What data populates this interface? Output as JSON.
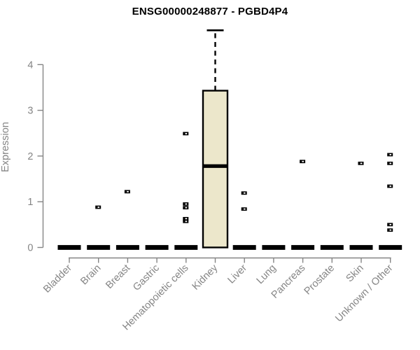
{
  "title": "ENSG00000248877 - PGBD4P4",
  "colors": {
    "background": "#ffffff",
    "axis": "#858585",
    "tick_label": "#858585",
    "box_fill": "#ECE7CB",
    "box_border": "#000000",
    "median": "#000000",
    "outlier": "#000000",
    "title_color": "#000000"
  },
  "chart_data": {
    "type": "boxplot",
    "title": "ENSG00000248877 - PGBD4P4",
    "xlabel": "",
    "ylabel": "Expression",
    "ylim": [
      0,
      4.8
    ],
    "yticks": [
      0,
      1,
      2,
      3,
      4
    ],
    "grid": false,
    "legend": false,
    "categories": [
      "Bladder",
      "Brain",
      "Breast",
      "Gastric",
      "Hematopoietic cells",
      "Kidney",
      "Liver",
      "Lung",
      "Pancreas",
      "Prostate",
      "Skin",
      "Unknown / Other"
    ],
    "series": [
      {
        "category": "Bladder",
        "q1": 0,
        "median": 0,
        "q3": 0,
        "whisker_low": 0,
        "whisker_high": 0,
        "outliers": []
      },
      {
        "category": "Brain",
        "q1": 0,
        "median": 0,
        "q3": 0,
        "whisker_low": 0,
        "whisker_high": 0,
        "outliers": [
          0.88
        ]
      },
      {
        "category": "Breast",
        "q1": 0,
        "median": 0,
        "q3": 0,
        "whisker_low": 0,
        "whisker_high": 0,
        "outliers": [
          1.22
        ]
      },
      {
        "category": "Gastric",
        "q1": 0,
        "median": 0,
        "q3": 0,
        "whisker_low": 0,
        "whisker_high": 0,
        "outliers": []
      },
      {
        "category": "Hematopoietic cells",
        "q1": 0,
        "median": 0,
        "q3": 0,
        "whisker_low": 0,
        "whisker_high": 0,
        "outliers": [
          2.49,
          0.95,
          0.87,
          0.63,
          0.57
        ]
      },
      {
        "category": "Kidney",
        "q1": 0,
        "median": 1.78,
        "q3": 3.43,
        "whisker_low": 0,
        "whisker_high": 4.75,
        "outliers": []
      },
      {
        "category": "Liver",
        "q1": 0,
        "median": 0,
        "q3": 0,
        "whisker_low": 0,
        "whisker_high": 0,
        "outliers": [
          1.19,
          0.84
        ]
      },
      {
        "category": "Lung",
        "q1": 0,
        "median": 0,
        "q3": 0,
        "whisker_low": 0,
        "whisker_high": 0,
        "outliers": []
      },
      {
        "category": "Pancreas",
        "q1": 0,
        "median": 0,
        "q3": 0,
        "whisker_low": 0,
        "whisker_high": 0,
        "outliers": [
          1.88
        ]
      },
      {
        "category": "Prostate",
        "q1": 0,
        "median": 0,
        "q3": 0,
        "whisker_low": 0,
        "whisker_high": 0,
        "outliers": []
      },
      {
        "category": "Skin",
        "q1": 0,
        "median": 0,
        "q3": 0,
        "whisker_low": 0,
        "whisker_high": 0,
        "outliers": [
          1.84
        ]
      },
      {
        "category": "Unknown / Other",
        "q1": 0,
        "median": 0,
        "q3": 0,
        "whisker_low": 0,
        "whisker_high": 0,
        "outliers": [
          2.03,
          1.84,
          1.34,
          0.5,
          0.38
        ]
      }
    ]
  }
}
